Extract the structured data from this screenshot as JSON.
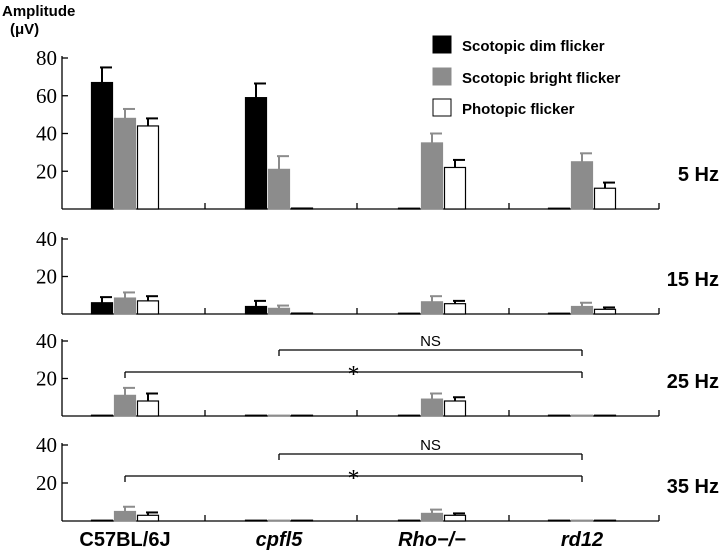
{
  "figure": {
    "ylabel_line1": "Amplitude",
    "ylabel_line2": "(μV)"
  },
  "legend": {
    "items": [
      {
        "label": "Scotopic dim flicker",
        "color": "#000000"
      },
      {
        "label": "Scotopic bright flicker",
        "color": "#8c8c8c"
      },
      {
        "label": "Photopic flicker",
        "color": "#ffffff"
      }
    ],
    "placement": "top-right"
  },
  "chart_data": [
    {
      "type": "bar",
      "title": "5 Hz",
      "categories": [
        "C57BL/6J",
        "cpfl5",
        "Rho−/−",
        "rd12"
      ],
      "ylim": [
        0,
        80
      ],
      "yticks": [
        20,
        40,
        60,
        80
      ],
      "series": [
        {
          "name": "Scotopic dim flicker",
          "values": [
            67,
            59,
            0,
            0
          ],
          "errors": [
            8,
            7.5,
            0,
            0
          ]
        },
        {
          "name": "Scotopic bright flicker",
          "values": [
            48,
            21,
            35,
            25
          ],
          "errors": [
            5,
            7,
            5,
            4.5
          ]
        },
        {
          "name": "Photopic flicker",
          "values": [
            44,
            0.5,
            22,
            11
          ],
          "errors": [
            4,
            0,
            4,
            3
          ]
        }
      ],
      "annotations": []
    },
    {
      "type": "bar",
      "title": "15 Hz",
      "categories": [
        "C57BL/6J",
        "cpfl5",
        "Rho−/−",
        "rd12"
      ],
      "ylim": [
        0,
        40
      ],
      "yticks": [
        20,
        40
      ],
      "series": [
        {
          "name": "Scotopic dim flicker",
          "values": [
            6,
            4,
            0,
            0
          ],
          "errors": [
            3,
            3,
            0,
            0
          ]
        },
        {
          "name": "Scotopic bright flicker",
          "values": [
            8.5,
            3,
            6.5,
            4
          ],
          "errors": [
            3,
            1.5,
            3,
            2
          ]
        },
        {
          "name": "Photopic flicker",
          "values": [
            7,
            0.5,
            5.5,
            2.5
          ],
          "errors": [
            2.5,
            0,
            1.5,
            1
          ]
        }
      ],
      "annotations": []
    },
    {
      "type": "bar",
      "title": "25 Hz",
      "categories": [
        "C57BL/6J",
        "cpfl5",
        "Rho−/−",
        "rd12"
      ],
      "ylim": [
        0,
        40
      ],
      "yticks": [
        20,
        40
      ],
      "series": [
        {
          "name": "Scotopic dim flicker",
          "values": [
            0,
            0,
            0,
            0
          ],
          "errors": [
            0,
            0,
            0,
            0
          ]
        },
        {
          "name": "Scotopic bright flicker",
          "values": [
            11,
            0,
            9,
            0
          ],
          "errors": [
            4,
            0,
            3,
            0
          ]
        },
        {
          "name": "Photopic flicker",
          "values": [
            8,
            0,
            8,
            0
          ],
          "errors": [
            4,
            0,
            2,
            0
          ]
        }
      ],
      "annotations": [
        {
          "from": "cpfl5",
          "to": "rd12",
          "label": "NS"
        },
        {
          "from": "C57BL/6J",
          "to": "rd12",
          "label": "*"
        }
      ]
    },
    {
      "type": "bar",
      "title": "35 Hz",
      "categories": [
        "C57BL/6J",
        "cpfl5",
        "Rho−/−",
        "rd12"
      ],
      "ylim": [
        0,
        40
      ],
      "yticks": [
        20,
        40
      ],
      "series": [
        {
          "name": "Scotopic dim flicker",
          "values": [
            0,
            0,
            0,
            0
          ],
          "errors": [
            0,
            0,
            0,
            0
          ]
        },
        {
          "name": "Scotopic bright flicker",
          "values": [
            5,
            0,
            4,
            0
          ],
          "errors": [
            2.5,
            0,
            2,
            0
          ]
        },
        {
          "name": "Photopic flicker",
          "values": [
            3,
            0,
            3,
            0
          ],
          "errors": [
            1.5,
            0,
            1,
            0
          ]
        }
      ],
      "annotations": [
        {
          "from": "cpfl5",
          "to": "rd12",
          "label": "NS"
        },
        {
          "from": "C57BL/6J",
          "to": "rd12",
          "label": "*"
        }
      ]
    }
  ]
}
